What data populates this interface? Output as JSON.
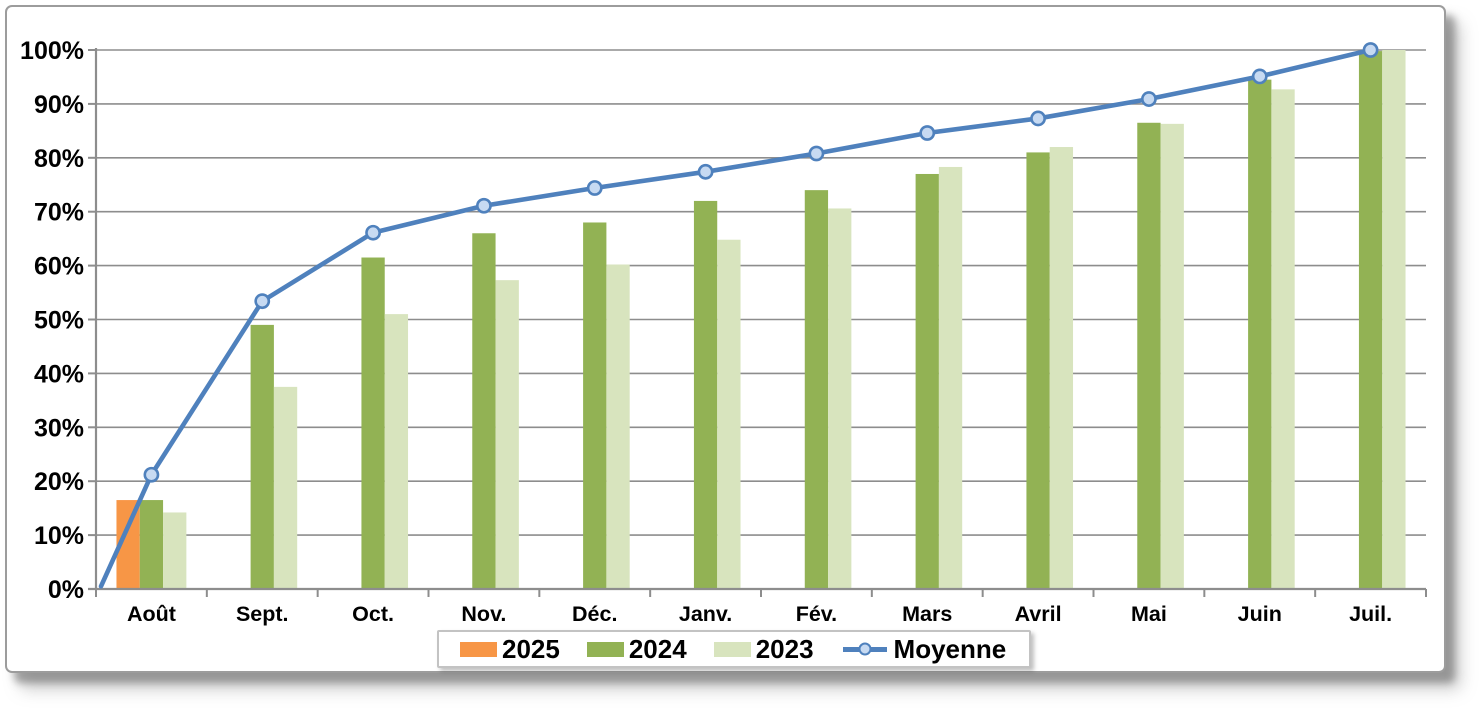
{
  "chart_data": {
    "type": "bar+line",
    "title": "",
    "categories": [
      "Août",
      "Sept.",
      "Oct.",
      "Nov.",
      "Déc.",
      "Janv.",
      "Fév.",
      "Mars",
      "Avril",
      "Mai",
      "Juin",
      "Juil."
    ],
    "series": [
      {
        "name": "2025",
        "type": "bar",
        "color": "#F79646",
        "values": [
          16.5,
          null,
          null,
          null,
          null,
          null,
          null,
          null,
          null,
          null,
          null,
          null
        ]
      },
      {
        "name": "2024",
        "type": "bar",
        "color": "#92B254",
        "values": [
          16.5,
          49,
          61.5,
          66,
          68,
          72,
          74,
          77,
          81,
          86.5,
          94.5,
          99.8
        ]
      },
      {
        "name": "2023",
        "type": "bar",
        "color": "#D8E4BE",
        "values": [
          14.2,
          37.5,
          51,
          57.3,
          60.2,
          64.8,
          70.6,
          78.3,
          82,
          86.3,
          92.7,
          100
        ]
      },
      {
        "name": "Moyenne",
        "type": "line",
        "color": "#4F81BD",
        "marker_fill": "#C7DAF2",
        "values": [
          21.2,
          53.4,
          66.1,
          71.1,
          74.4,
          77.4,
          80.8,
          84.6,
          87.3,
          90.9,
          95.1,
          100
        ]
      }
    ],
    "y_axis": {
      "min": 0,
      "max": 100,
      "step": 10,
      "tick_labels": [
        "0%",
        "10%",
        "20%",
        "30%",
        "40%",
        "50%",
        "60%",
        "70%",
        "80%",
        "90%",
        "100%"
      ]
    },
    "grid": true,
    "legend_position": "bottom-center",
    "colors": {
      "axis": "#8D8D8D",
      "gridline": "#8D8D8D",
      "label": "#000000",
      "background": "#FFFFFF"
    }
  }
}
